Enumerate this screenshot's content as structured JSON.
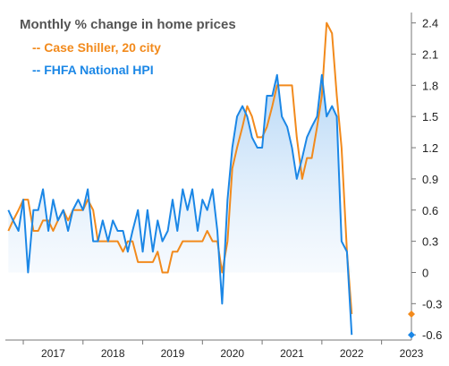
{
  "chart_data": {
    "type": "line",
    "title": "Monthly % change in home prices",
    "xlabel": "",
    "ylabel": "",
    "x_ticks": [
      "2017",
      "2018",
      "2019",
      "2020",
      "2021",
      "2022",
      "2023"
    ],
    "y_ticks": [
      "2.4",
      "2.1",
      "1.8",
      "1.5",
      "1.2",
      "0.9",
      "0.6",
      "0.3",
      "0",
      "-0.3",
      "-0.6"
    ],
    "ylim": [
      -0.65,
      2.5
    ],
    "xlim": [
      2016.7,
      2023.5
    ],
    "grid": false,
    "legend_position": "top-left",
    "series": [
      {
        "name": "Case Shiller, 20 city",
        "legend_label": "-- Case Shiller, 20 city",
        "color": "#f28a1c",
        "x": [
          2016.75,
          2016.83,
          2016.92,
          2017.0,
          2017.08,
          2017.17,
          2017.25,
          2017.33,
          2017.42,
          2017.5,
          2017.58,
          2017.67,
          2017.75,
          2017.83,
          2017.92,
          2018.0,
          2018.08,
          2018.17,
          2018.25,
          2018.33,
          2018.42,
          2018.5,
          2018.58,
          2018.67,
          2018.75,
          2018.83,
          2018.92,
          2019.0,
          2019.08,
          2019.17,
          2019.25,
          2019.33,
          2019.42,
          2019.5,
          2019.58,
          2019.67,
          2019.75,
          2019.83,
          2019.92,
          2020.0,
          2020.08,
          2020.17,
          2020.25,
          2020.33,
          2020.42,
          2020.5,
          2020.58,
          2020.67,
          2020.75,
          2020.83,
          2020.92,
          2021.0,
          2021.08,
          2021.17,
          2021.25,
          2021.33,
          2021.42,
          2021.5,
          2021.58,
          2021.67,
          2021.75,
          2021.83,
          2021.92,
          2022.0,
          2022.08,
          2022.17,
          2022.25,
          2022.33,
          2022.42,
          2022.5
        ],
        "values": [
          0.4,
          0.5,
          0.6,
          0.7,
          0.7,
          0.4,
          0.4,
          0.5,
          0.5,
          0.4,
          0.5,
          0.6,
          0.5,
          0.6,
          0.6,
          0.6,
          0.7,
          0.6,
          0.3,
          0.3,
          0.3,
          0.3,
          0.3,
          0.2,
          0.3,
          0.3,
          0.1,
          0.1,
          0.1,
          0.1,
          0.2,
          0.0,
          0.0,
          0.2,
          0.2,
          0.3,
          0.3,
          0.3,
          0.3,
          0.3,
          0.4,
          0.3,
          0.3,
          0.0,
          0.3,
          1.0,
          1.2,
          1.4,
          1.6,
          1.5,
          1.3,
          1.3,
          1.4,
          1.6,
          1.8,
          1.8,
          1.8,
          1.8,
          1.3,
          0.9,
          1.1,
          1.1,
          1.4,
          1.7,
          2.4,
          2.3,
          1.7,
          1.2,
          0.2,
          -0.4
        ]
      },
      {
        "name": "FHFA National HPI",
        "legend_label": "-- FHFA National HPI",
        "color": "#1b87e6",
        "x": [
          2016.75,
          2016.83,
          2016.92,
          2017.0,
          2017.08,
          2017.17,
          2017.25,
          2017.33,
          2017.42,
          2017.5,
          2017.58,
          2017.67,
          2017.75,
          2017.83,
          2017.92,
          2018.0,
          2018.08,
          2018.17,
          2018.25,
          2018.33,
          2018.42,
          2018.5,
          2018.58,
          2018.67,
          2018.75,
          2018.83,
          2018.92,
          2019.0,
          2019.08,
          2019.17,
          2019.25,
          2019.33,
          2019.42,
          2019.5,
          2019.58,
          2019.67,
          2019.75,
          2019.83,
          2019.92,
          2020.0,
          2020.08,
          2020.17,
          2020.25,
          2020.33,
          2020.42,
          2020.5,
          2020.58,
          2020.67,
          2020.75,
          2020.83,
          2020.92,
          2021.0,
          2021.08,
          2021.17,
          2021.25,
          2021.33,
          2021.42,
          2021.5,
          2021.58,
          2021.67,
          2021.75,
          2021.83,
          2021.92,
          2022.0,
          2022.08,
          2022.17,
          2022.25,
          2022.33,
          2022.42,
          2022.5
        ],
        "values": [
          0.6,
          0.5,
          0.4,
          0.7,
          0.0,
          0.6,
          0.6,
          0.8,
          0.4,
          0.7,
          0.5,
          0.6,
          0.4,
          0.6,
          0.7,
          0.6,
          0.8,
          0.3,
          0.3,
          0.5,
          0.3,
          0.5,
          0.4,
          0.4,
          0.2,
          0.4,
          0.6,
          0.2,
          0.6,
          0.2,
          0.5,
          0.3,
          0.4,
          0.7,
          0.4,
          0.8,
          0.6,
          0.8,
          0.4,
          0.7,
          0.6,
          0.8,
          0.4,
          -0.3,
          0.7,
          1.2,
          1.5,
          1.6,
          1.5,
          1.3,
          1.2,
          1.2,
          1.7,
          1.7,
          1.9,
          1.5,
          1.4,
          1.2,
          0.9,
          1.1,
          1.3,
          1.4,
          1.5,
          1.9,
          1.5,
          1.6,
          1.5,
          0.3,
          0.2,
          -0.6
        ]
      }
    ]
  }
}
